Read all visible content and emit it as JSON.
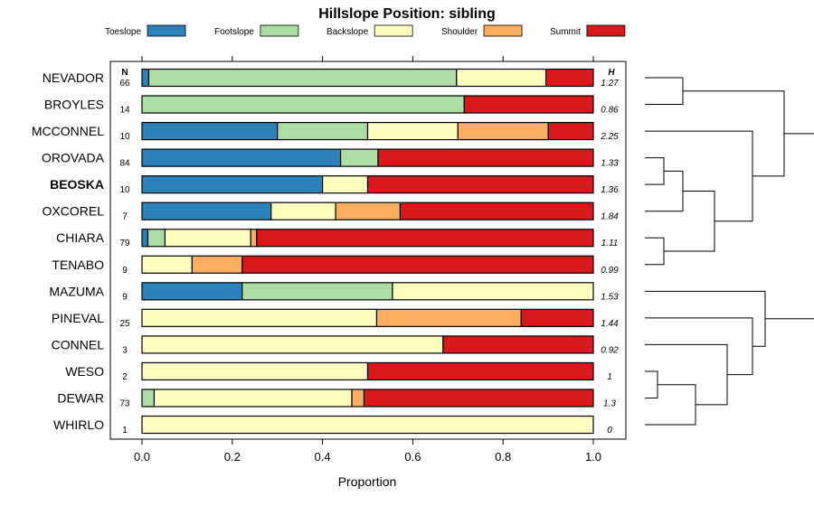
{
  "chart_data": {
    "type": "bar",
    "orientation": "horizontal",
    "stacked": true,
    "title": "Hillslope Position: sibling",
    "xlabel": "Proportion",
    "ylabel": "",
    "xlim": [
      0,
      1
    ],
    "x_ticks": [
      "0.0",
      "0.2",
      "0.4",
      "0.6",
      "0.8",
      "1.0"
    ],
    "x_tick_values": [
      0,
      0.2,
      0.4,
      0.6,
      0.8,
      1.0
    ],
    "legend_position": "top",
    "n_header": "N",
    "h_header": "H",
    "categories_legend": [
      {
        "name": "Toeslope",
        "color": "#2b83ba"
      },
      {
        "name": "Footslope",
        "color": "#abdda4"
      },
      {
        "name": "Backslope",
        "color": "#ffffbf"
      },
      {
        "name": "Shoulder",
        "color": "#fdae61"
      },
      {
        "name": "Summit",
        "color": "#d7191c"
      }
    ],
    "rows": [
      {
        "name": "NEVADOR",
        "n": "66",
        "h": "1.27",
        "bold": false,
        "values": [
          0.015,
          0.682,
          0.198,
          0.0,
          0.105
        ]
      },
      {
        "name": "BROYLES",
        "n": "14",
        "h": "0.86",
        "bold": false,
        "values": [
          0.0,
          0.714,
          0.0,
          0.0,
          0.286
        ]
      },
      {
        "name": "MCCONNEL",
        "n": "10",
        "h": "2.25",
        "bold": false,
        "values": [
          0.3,
          0.2,
          0.2,
          0.2,
          0.1
        ]
      },
      {
        "name": "OROVADA",
        "n": "84",
        "h": "1.33",
        "bold": false,
        "values": [
          0.44,
          0.083,
          0.0,
          0.0,
          0.477
        ]
      },
      {
        "name": "BEOSKA",
        "n": "10",
        "h": "1.36",
        "bold": true,
        "values": [
          0.4,
          0.0,
          0.1,
          0.0,
          0.5
        ]
      },
      {
        "name": "OXCOREL",
        "n": "7",
        "h": "1.84",
        "bold": false,
        "values": [
          0.286,
          0.0,
          0.143,
          0.143,
          0.428
        ]
      },
      {
        "name": "CHIARA",
        "n": "79",
        "h": "1.11",
        "bold": false,
        "values": [
          0.013,
          0.038,
          0.19,
          0.013,
          0.746
        ]
      },
      {
        "name": "TENABO",
        "n": "9",
        "h": "0.99",
        "bold": false,
        "values": [
          0.0,
          0.0,
          0.111,
          0.111,
          0.778
        ]
      },
      {
        "name": "MAZUMA",
        "n": "9",
        "h": "1.53",
        "bold": false,
        "values": [
          0.222,
          0.333,
          0.445,
          0.0,
          0.0
        ]
      },
      {
        "name": "PINEVAL",
        "n": "25",
        "h": "1.44",
        "bold": false,
        "values": [
          0.0,
          0.0,
          0.52,
          0.32,
          0.16
        ]
      },
      {
        "name": "CONNEL",
        "n": "3",
        "h": "0.92",
        "bold": false,
        "values": [
          0.0,
          0.0,
          0.667,
          0.0,
          0.333
        ]
      },
      {
        "name": "WESO",
        "n": "2",
        "h": "1",
        "bold": false,
        "values": [
          0.0,
          0.0,
          0.5,
          0.0,
          0.5
        ]
      },
      {
        "name": "DEWAR",
        "n": "73",
        "h": "1.3",
        "bold": false,
        "values": [
          0.0,
          0.027,
          0.438,
          0.027,
          0.508
        ]
      },
      {
        "name": "WHIRLO",
        "n": "1",
        "h": "0",
        "bold": false,
        "values": [
          0.0,
          0.0,
          1.0,
          0.0,
          0.0
        ]
      }
    ],
    "dendrogram": {
      "leaf_order": [
        "NEVADOR",
        "BROYLES",
        "MCCONNEL",
        "OROVADA",
        "BEOSKA",
        "OXCOREL",
        "CHIARA",
        "TENABO",
        "MAZUMA",
        "PINEVAL",
        "CONNEL",
        "WESO",
        "DEWAR",
        "WHIRLO"
      ],
      "merges": [
        {
          "a": "L:3",
          "b": "L:4",
          "height": 0.15
        },
        {
          "a": "L:6",
          "b": "L:7",
          "height": 0.15
        },
        {
          "a": "M:0",
          "b": "L:5",
          "height": 0.3
        },
        {
          "a": "L:11",
          "b": "L:12",
          "height": 0.1
        },
        {
          "a": "L:0",
          "b": "L:1",
          "height": 0.3
        },
        {
          "a": "M:2",
          "b": "M:1",
          "height": 0.55
        },
        {
          "a": "M:3",
          "b": "L:13",
          "height": 0.4
        },
        {
          "a": "L:2",
          "b": "M:5",
          "height": 0.85
        },
        {
          "a": "L:10",
          "b": "M:6",
          "height": 0.65
        },
        {
          "a": "M:4",
          "b": "M:7",
          "height": 1.1
        },
        {
          "a": "L:9",
          "b": "M:8",
          "height": 0.85
        },
        {
          "a": "L:8",
          "b": "M:10",
          "height": 0.95
        },
        {
          "a": "M:9",
          "b": "M:11",
          "height": 1.35
        }
      ]
    }
  }
}
